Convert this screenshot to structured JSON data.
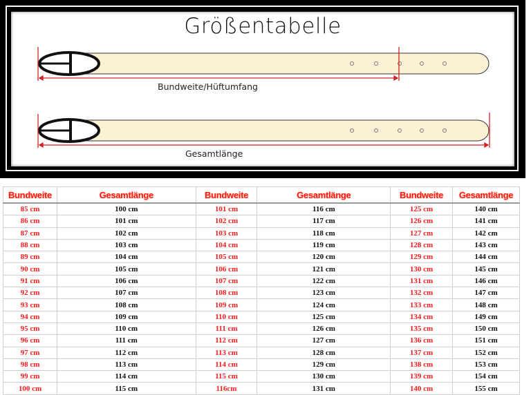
{
  "title": "Größentabelle",
  "diagram": {
    "waist_label": "Bundweite/Hüftumfang",
    "total_label": "Gesamtlänge",
    "belt_color": "#fdf1d4",
    "measure_color": "#d42020"
  },
  "table": {
    "headers": [
      "Bundweite",
      "Gesamtlänge",
      "Bundweite",
      "Gesamtlänge",
      "Bundweite",
      "Gesamtlänge"
    ],
    "rows": [
      [
        "85 cm",
        "100 cm",
        "101 cm",
        "116 cm",
        "125 cm",
        "140 cm"
      ],
      [
        "86 cm",
        "101 cm",
        "102 cm",
        "117 cm",
        "126 cm",
        "141 cm"
      ],
      [
        "87 cm",
        "102 cm",
        "103 cm",
        "118 cm",
        "127 cm",
        "142 cm"
      ],
      [
        "88 cm",
        "103 cm",
        "104 cm",
        "119 cm",
        "128 cm",
        "143 cm"
      ],
      [
        "89 cm",
        "104 cm",
        "105 cm",
        "120 cm",
        "129 cm",
        "144 cm"
      ],
      [
        "90 cm",
        "105 cm",
        "106 cm",
        "121 cm",
        "130 cm",
        "145 cm"
      ],
      [
        "91 cm",
        "106 cm",
        "107 cm",
        "122 cm",
        "131 cm",
        "146 cm"
      ],
      [
        "92 cm",
        "107 cm",
        "108 cm",
        "123 cm",
        "132 cm",
        "147 cm"
      ],
      [
        "93 cm",
        "108 cm",
        "109 cm",
        "124 cm",
        "133 cm",
        "148 cm"
      ],
      [
        "94 cm",
        "109 cm",
        "110 cm",
        "125 cm",
        "134 cm",
        "149 cm"
      ],
      [
        "95 cm",
        "110 cm",
        "111 cm",
        "126 cm",
        "135 cm",
        "150 cm"
      ],
      [
        "96 cm",
        "111 cm",
        "112 cm",
        "127 cm",
        "136 cm",
        "151 cm"
      ],
      [
        "97 cm",
        "112 cm",
        "113 cm",
        "128 cm",
        "137 cm",
        "152 cm"
      ],
      [
        "98 cm",
        "113 cm",
        "114 cm",
        "129 cm",
        "138 cm",
        "153 cm"
      ],
      [
        "99 cm",
        "114 cm",
        "115 cm",
        "130 cm",
        "139 cm",
        "154 cm"
      ],
      [
        "100 cm",
        "115 cm",
        "116cm",
        "131 cm",
        "140 cm",
        "155 cm"
      ]
    ]
  }
}
